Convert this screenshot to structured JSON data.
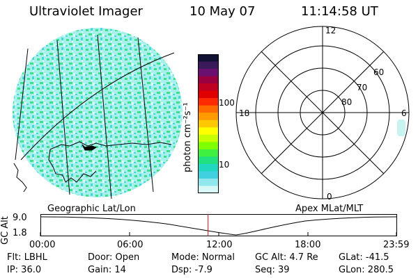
{
  "header": {
    "title": "Ultraviolet Imager",
    "date": "10 May 07",
    "time": "11:14:58 UT"
  },
  "colors": {
    "image_base": "#a8f0ec",
    "image_green": "#3fe08a",
    "image_cyan": "#44d8d8",
    "grid_line": "#000000",
    "marker": "#c01818"
  },
  "colorbar": {
    "label": "photon cm⁻²s⁻¹",
    "ticks": [
      "100",
      "10"
    ],
    "colors": [
      "#111133",
      "#3a1a5a",
      "#6a1070",
      "#9a0040",
      "#c00020",
      "#e00000",
      "#ff2a00",
      "#ff6a00",
      "#ff9a00",
      "#ffc800",
      "#ffff00",
      "#c8ff00",
      "#80ff00",
      "#40f040",
      "#20e080",
      "#20d8c0",
      "#40d0e0",
      "#90e8ec",
      "#d8f8f8"
    ]
  },
  "geo_map": {
    "label": "Geographic Lat/Lon"
  },
  "polar_plot": {
    "label": "Apex MLat/MLT",
    "mlt_labels": {
      "top": "12",
      "left": "18",
      "right": "6",
      "bottom": "0"
    },
    "lat_labels": [
      "60",
      "70",
      "80"
    ]
  },
  "altitude_plot": {
    "ylabel": "GC Alt",
    "yticks": [
      "9.0",
      "1.8"
    ],
    "xticks": [
      "00:00",
      "06:00",
      "12:00",
      "18:00",
      "23:59"
    ],
    "current_time_fraction": 0.47
  },
  "info": {
    "flt": "Flt:  LBHL",
    "ip": "IP:  36.0",
    "door": "Door:  Open",
    "gain": "Gain:  14",
    "mode": "Mode:  Normal",
    "dsp": "Dsp:     -7.9",
    "gc_alt": "GC Alt:  4.7 Re",
    "seq": "Seq:  39",
    "glat": "GLat:  -41.5",
    "glon": "GLon:  280.5"
  }
}
